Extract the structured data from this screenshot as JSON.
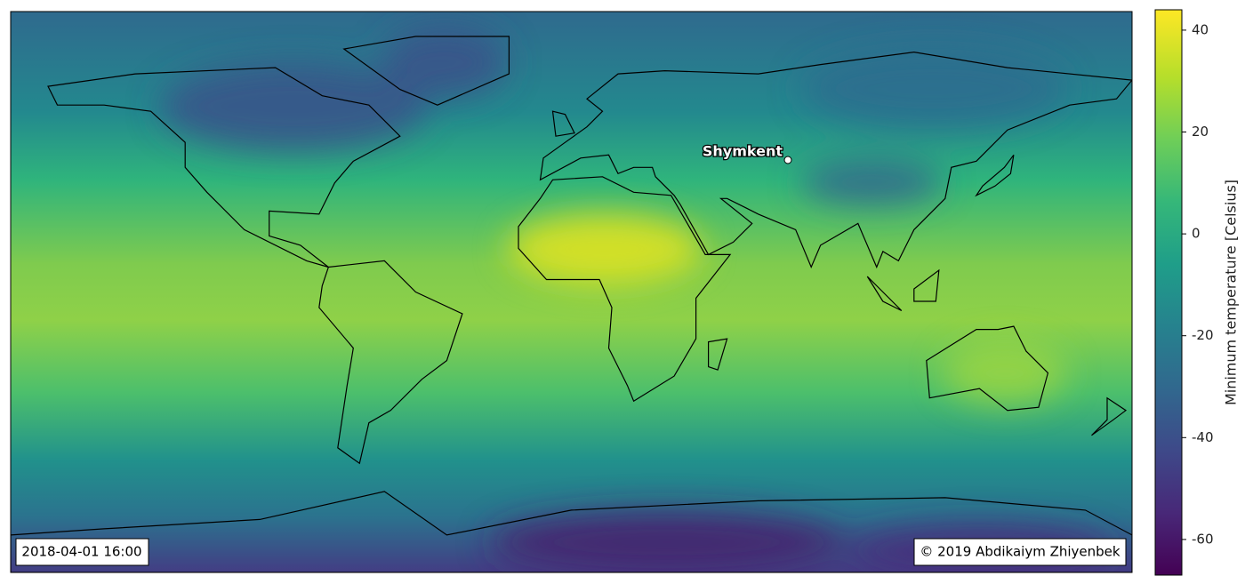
{
  "marker": {
    "label": "Shymkent"
  },
  "timestamp": "2018-04-01 16:00",
  "copyright": "© 2019 Abdikaiym Zhiyenbek",
  "colorbar": {
    "label": "Minimum temperature [Celsius]",
    "lim": [
      -67,
      44
    ],
    "ticks": [
      40,
      20,
      0,
      -20,
      -40,
      -60
    ]
  }
}
